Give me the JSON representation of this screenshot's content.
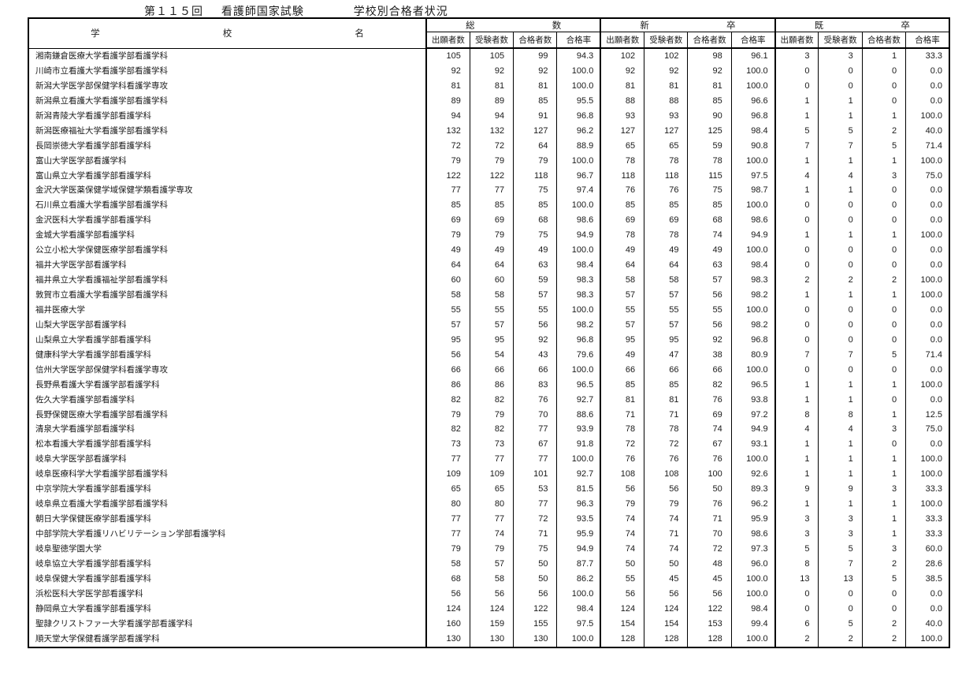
{
  "title": {
    "round": "第１１５回",
    "exam": "看護師国家試験",
    "subtitle": "学校別合格者状況"
  },
  "table": {
    "school_header_chars": [
      "学",
      "校",
      "名"
    ],
    "groups": [
      {
        "id": "total",
        "chars": [
          "総",
          "数"
        ]
      },
      {
        "id": "new-grad",
        "chars": [
          "新",
          "卒"
        ]
      },
      {
        "id": "repeat",
        "chars": [
          "既",
          "卒"
        ]
      }
    ],
    "sub_headers": [
      "出願者数",
      "受験者数",
      "合格者数",
      "合格率"
    ],
    "rows": [
      {
        "name": "湘南鎌倉医療大学看護学部看護学科",
        "values": [
          "105",
          "105",
          "99",
          "94.3",
          "102",
          "102",
          "98",
          "96.1",
          "3",
          "3",
          "1",
          "33.3"
        ]
      },
      {
        "name": "川崎市立看護大学看護学部看護学科",
        "values": [
          "92",
          "92",
          "92",
          "100.0",
          "92",
          "92",
          "92",
          "100.0",
          "0",
          "0",
          "0",
          "0.0"
        ]
      },
      {
        "name": "新潟大学医学部保健学科看護学専攻",
        "values": [
          "81",
          "81",
          "81",
          "100.0",
          "81",
          "81",
          "81",
          "100.0",
          "0",
          "0",
          "0",
          "0.0"
        ]
      },
      {
        "name": "新潟県立看護大学看護学部看護学科",
        "values": [
          "89",
          "89",
          "85",
          "95.5",
          "88",
          "88",
          "85",
          "96.6",
          "1",
          "1",
          "0",
          "0.0"
        ]
      },
      {
        "name": "新潟青陵大学看護学部看護学科",
        "values": [
          "94",
          "94",
          "91",
          "96.8",
          "93",
          "93",
          "90",
          "96.8",
          "1",
          "1",
          "1",
          "100.0"
        ]
      },
      {
        "name": "新潟医療福祉大学看護学部看護学科",
        "values": [
          "132",
          "132",
          "127",
          "96.2",
          "127",
          "127",
          "125",
          "98.4",
          "5",
          "5",
          "2",
          "40.0"
        ]
      },
      {
        "name": "長岡崇徳大学看護学部看護学科",
        "values": [
          "72",
          "72",
          "64",
          "88.9",
          "65",
          "65",
          "59",
          "90.8",
          "7",
          "7",
          "5",
          "71.4"
        ]
      },
      {
        "name": "富山大学医学部看護学科",
        "values": [
          "79",
          "79",
          "79",
          "100.0",
          "78",
          "78",
          "78",
          "100.0",
          "1",
          "1",
          "1",
          "100.0"
        ]
      },
      {
        "name": "富山県立大学看護学部看護学科",
        "values": [
          "122",
          "122",
          "118",
          "96.7",
          "118",
          "118",
          "115",
          "97.5",
          "4",
          "4",
          "3",
          "75.0"
        ]
      },
      {
        "name": "金沢大学医薬保健学域保健学類看護学専攻",
        "values": [
          "77",
          "77",
          "75",
          "97.4",
          "76",
          "76",
          "75",
          "98.7",
          "1",
          "1",
          "0",
          "0.0"
        ]
      },
      {
        "name": "石川県立看護大学看護学部看護学科",
        "values": [
          "85",
          "85",
          "85",
          "100.0",
          "85",
          "85",
          "85",
          "100.0",
          "0",
          "0",
          "0",
          "0.0"
        ]
      },
      {
        "name": "金沢医科大学看護学部看護学科",
        "values": [
          "69",
          "69",
          "68",
          "98.6",
          "69",
          "69",
          "68",
          "98.6",
          "0",
          "0",
          "0",
          "0.0"
        ]
      },
      {
        "name": "金城大学看護学部看護学科",
        "values": [
          "79",
          "79",
          "75",
          "94.9",
          "78",
          "78",
          "74",
          "94.9",
          "1",
          "1",
          "1",
          "100.0"
        ]
      },
      {
        "name": "公立小松大学保健医療学部看護学科",
        "values": [
          "49",
          "49",
          "49",
          "100.0",
          "49",
          "49",
          "49",
          "100.0",
          "0",
          "0",
          "0",
          "0.0"
        ]
      },
      {
        "name": "福井大学医学部看護学科",
        "values": [
          "64",
          "64",
          "63",
          "98.4",
          "64",
          "64",
          "63",
          "98.4",
          "0",
          "0",
          "0",
          "0.0"
        ]
      },
      {
        "name": "福井県立大学看護福祉学部看護学科",
        "values": [
          "60",
          "60",
          "59",
          "98.3",
          "58",
          "58",
          "57",
          "98.3",
          "2",
          "2",
          "2",
          "100.0"
        ]
      },
      {
        "name": "敦賀市立看護大学看護学部看護学科",
        "values": [
          "58",
          "58",
          "57",
          "98.3",
          "57",
          "57",
          "56",
          "98.2",
          "1",
          "1",
          "1",
          "100.0"
        ]
      },
      {
        "name": "福井医療大学",
        "values": [
          "55",
          "55",
          "55",
          "100.0",
          "55",
          "55",
          "55",
          "100.0",
          "0",
          "0",
          "0",
          "0.0"
        ]
      },
      {
        "name": "山梨大学医学部看護学科",
        "values": [
          "57",
          "57",
          "56",
          "98.2",
          "57",
          "57",
          "56",
          "98.2",
          "0",
          "0",
          "0",
          "0.0"
        ]
      },
      {
        "name": "山梨県立大学看護学部看護学科",
        "values": [
          "95",
          "95",
          "92",
          "96.8",
          "95",
          "95",
          "92",
          "96.8",
          "0",
          "0",
          "0",
          "0.0"
        ]
      },
      {
        "name": "健康科学大学看護学部看護学科",
        "values": [
          "56",
          "54",
          "43",
          "79.6",
          "49",
          "47",
          "38",
          "80.9",
          "7",
          "7",
          "5",
          "71.4"
        ]
      },
      {
        "name": "信州大学医学部保健学科看護学専攻",
        "values": [
          "66",
          "66",
          "66",
          "100.0",
          "66",
          "66",
          "66",
          "100.0",
          "0",
          "0",
          "0",
          "0.0"
        ]
      },
      {
        "name": "長野県看護大学看護学部看護学科",
        "values": [
          "86",
          "86",
          "83",
          "96.5",
          "85",
          "85",
          "82",
          "96.5",
          "1",
          "1",
          "1",
          "100.0"
        ]
      },
      {
        "name": "佐久大学看護学部看護学科",
        "values": [
          "82",
          "82",
          "76",
          "92.7",
          "81",
          "81",
          "76",
          "93.8",
          "1",
          "1",
          "0",
          "0.0"
        ]
      },
      {
        "name": "長野保健医療大学看護学部看護学科",
        "values": [
          "79",
          "79",
          "70",
          "88.6",
          "71",
          "71",
          "69",
          "97.2",
          "8",
          "8",
          "1",
          "12.5"
        ]
      },
      {
        "name": "清泉大学看護学部看護学科",
        "values": [
          "82",
          "82",
          "77",
          "93.9",
          "78",
          "78",
          "74",
          "94.9",
          "4",
          "4",
          "3",
          "75.0"
        ]
      },
      {
        "name": "松本看護大学看護学部看護学科",
        "values": [
          "73",
          "73",
          "67",
          "91.8",
          "72",
          "72",
          "67",
          "93.1",
          "1",
          "1",
          "0",
          "0.0"
        ]
      },
      {
        "name": "岐阜大学医学部看護学科",
        "values": [
          "77",
          "77",
          "77",
          "100.0",
          "76",
          "76",
          "76",
          "100.0",
          "1",
          "1",
          "1",
          "100.0"
        ]
      },
      {
        "name": "岐阜医療科学大学看護学部看護学科",
        "values": [
          "109",
          "109",
          "101",
          "92.7",
          "108",
          "108",
          "100",
          "92.6",
          "1",
          "1",
          "1",
          "100.0"
        ]
      },
      {
        "name": "中京学院大学看護学部看護学科",
        "values": [
          "65",
          "65",
          "53",
          "81.5",
          "56",
          "56",
          "50",
          "89.3",
          "9",
          "9",
          "3",
          "33.3"
        ]
      },
      {
        "name": "岐阜県立看護大学看護学部看護学科",
        "values": [
          "80",
          "80",
          "77",
          "96.3",
          "79",
          "79",
          "76",
          "96.2",
          "1",
          "1",
          "1",
          "100.0"
        ]
      },
      {
        "name": "朝日大学保健医療学部看護学科",
        "values": [
          "77",
          "77",
          "72",
          "93.5",
          "74",
          "74",
          "71",
          "95.9",
          "3",
          "3",
          "1",
          "33.3"
        ]
      },
      {
        "name": "中部学院大学看護リハビリテーション学部看護学科",
        "values": [
          "77",
          "74",
          "71",
          "95.9",
          "74",
          "71",
          "70",
          "98.6",
          "3",
          "3",
          "1",
          "33.3"
        ]
      },
      {
        "name": "岐阜聖徳学園大学",
        "values": [
          "79",
          "79",
          "75",
          "94.9",
          "74",
          "74",
          "72",
          "97.3",
          "5",
          "5",
          "3",
          "60.0"
        ]
      },
      {
        "name": "岐阜協立大学看護学部看護学科",
        "values": [
          "58",
          "57",
          "50",
          "87.7",
          "50",
          "50",
          "48",
          "96.0",
          "8",
          "7",
          "2",
          "28.6"
        ]
      },
      {
        "name": "岐阜保健大学看護学部看護学科",
        "values": [
          "68",
          "58",
          "50",
          "86.2",
          "55",
          "45",
          "45",
          "100.0",
          "13",
          "13",
          "5",
          "38.5"
        ]
      },
      {
        "name": "浜松医科大学医学部看護学科",
        "values": [
          "56",
          "56",
          "56",
          "100.0",
          "56",
          "56",
          "56",
          "100.0",
          "0",
          "0",
          "0",
          "0.0"
        ]
      },
      {
        "name": "静岡県立大学看護学部看護学科",
        "values": [
          "124",
          "124",
          "122",
          "98.4",
          "124",
          "124",
          "122",
          "98.4",
          "0",
          "0",
          "0",
          "0.0"
        ]
      },
      {
        "name": "聖隷クリストファー大学看護学部看護学科",
        "values": [
          "160",
          "159",
          "155",
          "97.5",
          "154",
          "154",
          "153",
          "99.4",
          "6",
          "5",
          "2",
          "40.0"
        ]
      },
      {
        "name": "順天堂大学保健看護学部看護学科",
        "values": [
          "130",
          "130",
          "130",
          "100.0",
          "128",
          "128",
          "128",
          "100.0",
          "2",
          "2",
          "2",
          "100.0"
        ]
      }
    ]
  }
}
